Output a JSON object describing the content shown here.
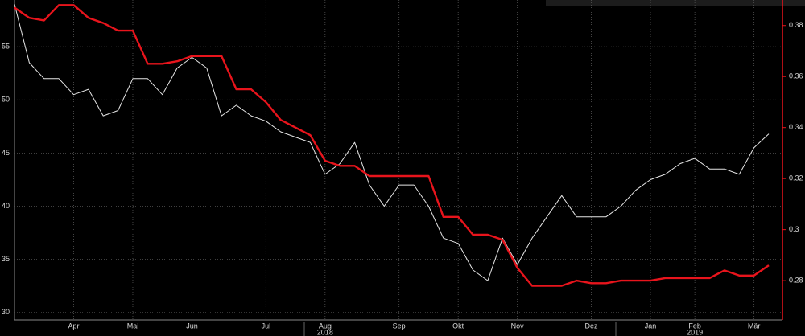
{
  "chart_data": {
    "type": "line",
    "categories": [
      null,
      null,
      null,
      null,
      "Apr",
      null,
      null,
      null,
      "Mai",
      null,
      null,
      null,
      "Jun",
      null,
      null,
      null,
      null,
      "Jul",
      null,
      null,
      null,
      "Aug",
      null,
      null,
      null,
      null,
      "Sep",
      null,
      null,
      null,
      "Okt",
      null,
      null,
      null,
      "Nov",
      null,
      null,
      null,
      null,
      "Dez",
      null,
      null,
      null,
      "Jan",
      null,
      null,
      "Feb",
      null,
      null,
      null,
      "Mär",
      null
    ],
    "categories2": [
      null,
      null,
      null,
      null,
      null,
      null,
      null,
      null,
      null,
      null,
      null,
      null,
      null,
      null,
      null,
      null,
      null,
      null,
      null,
      null,
      null,
      "2018",
      null,
      null,
      null,
      null,
      null,
      null,
      null,
      null,
      null,
      null,
      null,
      null,
      null,
      null,
      null,
      null,
      null,
      null,
      null,
      null,
      null,
      null,
      null,
      null,
      "2019",
      null,
      null,
      null,
      null,
      null
    ],
    "series": [
      {
        "color": "#e6e6e6",
        "values": [
          59,
          53.5,
          52,
          52,
          50.5,
          51,
          48.5,
          49,
          52,
          52,
          50.5,
          53,
          54,
          53,
          48.5,
          49.5,
          48.5,
          48,
          47,
          46.5,
          46,
          43,
          44,
          46,
          42,
          40,
          42,
          42,
          40,
          37,
          36.5,
          34,
          33,
          37,
          34.5,
          37,
          39,
          41,
          39,
          39,
          39,
          40,
          41.5,
          42.5,
          43,
          44,
          44.5,
          43.5,
          43.5,
          43,
          45.5,
          46.8
        ]
      },
      {
        "color": "#e8141c",
        "axis": "y2",
        "values": [
          0.387,
          0.383,
          0.382,
          0.388,
          0.388,
          0.383,
          0.381,
          0.378,
          0.378,
          0.365,
          0.365,
          0.366,
          0.368,
          0.368,
          0.368,
          0.355,
          0.355,
          0.35,
          0.343,
          0.34,
          0.337,
          0.327,
          0.325,
          0.325,
          0.321,
          0.321,
          0.321,
          0.321,
          0.321,
          0.305,
          0.305,
          0.298,
          0.298,
          0.296,
          0.285,
          0.278,
          0.278,
          0.278,
          0.28,
          0.279,
          0.279,
          0.28,
          0.28,
          0.28,
          0.281,
          0.281,
          0.281,
          0.281,
          0.284,
          0.282,
          0.282,
          0.286
        ]
      }
    ],
    "ylim": [
      29.3,
      59.4
    ],
    "yticks": [
      30,
      35,
      40,
      45,
      50,
      55
    ],
    "y2lim": [
      0.2646,
      0.39
    ],
    "y2ticks": [
      0.28,
      0.3,
      0.32,
      0.34,
      0.36,
      0.38
    ],
    "grid": true
  }
}
